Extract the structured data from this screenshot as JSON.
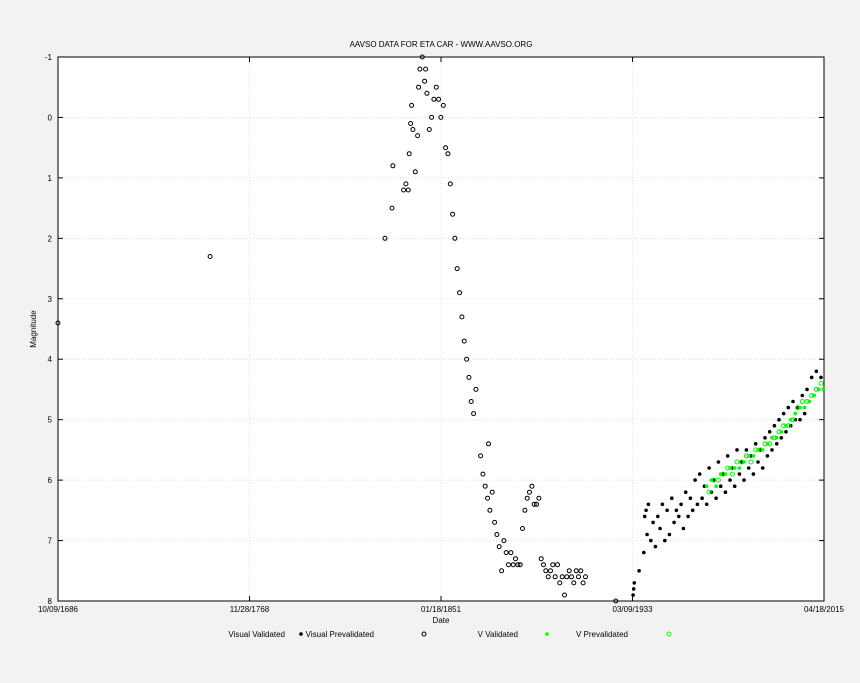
{
  "chart_data": {
    "type": "scatter",
    "title": "AAVSO DATA FOR ETA CAR - WWW.AAVSO.ORG",
    "xlabel": "Date",
    "ylabel": "Magnitude",
    "x_scale": "date",
    "xlim": [
      "1686-10-09",
      "2015-04-18"
    ],
    "ylim": [
      -1,
      8
    ],
    "y_inverted": true,
    "x_tick_labels": [
      "10/09/1686",
      "11/28/1768",
      "01/18/1851",
      "03/09/1933",
      "04/18/2015"
    ],
    "y_tick_labels": [
      "-1",
      "0",
      "1",
      "2",
      "3",
      "4",
      "5",
      "6",
      "7",
      "8"
    ],
    "grid": true,
    "legend_position": "bottom",
    "series": [
      {
        "name": "Visual Validated",
        "color": "#000000",
        "marker": "filled-dot",
        "points": [
          [
            "1933-06-01",
            7.9
          ],
          [
            "1933-09-01",
            7.8
          ],
          [
            "1933-12-01",
            7.7
          ],
          [
            "1936-01-01",
            7.5
          ],
          [
            "1938-01-01",
            7.2
          ],
          [
            "1938-06-01",
            6.6
          ],
          [
            "1939-01-01",
            6.5
          ],
          [
            "1939-06-01",
            6.9
          ],
          [
            "1940-01-01",
            6.4
          ],
          [
            "1941-01-01",
            7.0
          ],
          [
            "1942-01-01",
            6.7
          ],
          [
            "1943-01-01",
            7.1
          ],
          [
            "1944-01-01",
            6.6
          ],
          [
            "1945-01-01",
            6.8
          ],
          [
            "1946-01-01",
            6.4
          ],
          [
            "1947-01-01",
            7.0
          ],
          [
            "1948-01-01",
            6.5
          ],
          [
            "1949-01-01",
            6.9
          ],
          [
            "1950-01-01",
            6.3
          ],
          [
            "1951-01-01",
            6.7
          ],
          [
            "1952-01-01",
            6.5
          ],
          [
            "1953-01-01",
            6.6
          ],
          [
            "1954-01-01",
            6.4
          ],
          [
            "1955-01-01",
            6.8
          ],
          [
            "1956-01-01",
            6.2
          ],
          [
            "1957-01-01",
            6.6
          ],
          [
            "1958-01-01",
            6.3
          ],
          [
            "1959-01-01",
            6.5
          ],
          [
            "1960-01-01",
            6.0
          ],
          [
            "1961-01-01",
            6.4
          ],
          [
            "1962-01-01",
            5.9
          ],
          [
            "1963-01-01",
            6.3
          ],
          [
            "1964-01-01",
            6.1
          ],
          [
            "1965-01-01",
            6.4
          ],
          [
            "1966-01-01",
            5.8
          ],
          [
            "1967-01-01",
            6.2
          ],
          [
            "1968-01-01",
            6.0
          ],
          [
            "1969-01-01",
            6.3
          ],
          [
            "1970-01-01",
            5.7
          ],
          [
            "1971-01-01",
            6.1
          ],
          [
            "1972-01-01",
            5.9
          ],
          [
            "1973-01-01",
            6.2
          ],
          [
            "1974-01-01",
            5.6
          ],
          [
            "1975-01-01",
            6.0
          ],
          [
            "1976-01-01",
            5.8
          ],
          [
            "1977-01-01",
            6.1
          ],
          [
            "1978-01-01",
            5.5
          ],
          [
            "1979-01-01",
            5.9
          ],
          [
            "1980-01-01",
            5.7
          ],
          [
            "1981-01-01",
            6.0
          ],
          [
            "1982-01-01",
            5.5
          ],
          [
            "1983-01-01",
            5.8
          ],
          [
            "1984-01-01",
            5.6
          ],
          [
            "1985-01-01",
            5.9
          ],
          [
            "1986-01-01",
            5.4
          ],
          [
            "1987-01-01",
            5.7
          ],
          [
            "1988-01-01",
            5.5
          ],
          [
            "1989-01-01",
            5.8
          ],
          [
            "1990-01-01",
            5.3
          ],
          [
            "1991-01-01",
            5.6
          ],
          [
            "1992-01-01",
            5.2
          ],
          [
            "1993-01-01",
            5.5
          ],
          [
            "1994-01-01",
            5.1
          ],
          [
            "1995-01-01",
            5.4
          ],
          [
            "1996-01-01",
            5.0
          ],
          [
            "1997-01-01",
            5.3
          ],
          [
            "1998-01-01",
            4.9
          ],
          [
            "1999-01-01",
            5.2
          ],
          [
            "2000-01-01",
            4.8
          ],
          [
            "2001-01-01",
            5.1
          ],
          [
            "2002-01-01",
            4.7
          ],
          [
            "2003-01-01",
            5.0
          ],
          [
            "2004-01-01",
            4.8
          ],
          [
            "2005-01-01",
            5.0
          ],
          [
            "2006-01-01",
            4.6
          ],
          [
            "2007-01-01",
            4.9
          ],
          [
            "2008-01-01",
            4.5
          ],
          [
            "2009-01-01",
            4.7
          ],
          [
            "2010-01-01",
            4.3
          ],
          [
            "2011-01-01",
            4.6
          ],
          [
            "2012-01-01",
            4.2
          ],
          [
            "2013-01-01",
            4.5
          ],
          [
            "2014-01-01",
            4.3
          ],
          [
            "2015-01-01",
            4.5
          ]
        ]
      },
      {
        "name": "Visual Prevalidated",
        "color": "#000000",
        "marker": "open-dot",
        "points": [
          [
            "1686-10-09",
            3.4
          ],
          [
            "1752-01-01",
            2.3
          ],
          [
            "1827-01-01",
            2.0
          ],
          [
            "1830-01-01",
            1.5
          ],
          [
            "1830-06-01",
            0.8
          ],
          [
            "1835-01-01",
            1.2
          ],
          [
            "1836-01-01",
            1.1
          ],
          [
            "1837-01-01",
            1.2
          ],
          [
            "1837-06-01",
            0.6
          ],
          [
            "1838-01-01",
            0.1
          ],
          [
            "1838-06-01",
            -0.2
          ],
          [
            "1839-01-01",
            0.2
          ],
          [
            "1840-01-01",
            0.9
          ],
          [
            "1841-01-01",
            0.3
          ],
          [
            "1841-06-01",
            -0.5
          ],
          [
            "1842-01-01",
            -0.8
          ],
          [
            "1843-01-01",
            -1.0
          ],
          [
            "1844-01-01",
            -0.6
          ],
          [
            "1844-06-01",
            -0.8
          ],
          [
            "1845-01-01",
            -0.4
          ],
          [
            "1846-01-01",
            0.2
          ],
          [
            "1847-01-01",
            0.0
          ],
          [
            "1848-01-01",
            -0.3
          ],
          [
            "1849-01-01",
            -0.5
          ],
          [
            "1850-01-01",
            -0.3
          ],
          [
            "1851-01-01",
            0.0
          ],
          [
            "1852-01-01",
            -0.2
          ],
          [
            "1853-01-01",
            0.5
          ],
          [
            "1854-01-01",
            0.6
          ],
          [
            "1855-01-01",
            1.1
          ],
          [
            "1856-01-01",
            1.6
          ],
          [
            "1857-01-01",
            2.0
          ],
          [
            "1858-01-01",
            2.5
          ],
          [
            "1859-01-01",
            2.9
          ],
          [
            "1860-01-01",
            3.3
          ],
          [
            "1861-01-01",
            3.7
          ],
          [
            "1862-01-01",
            4.0
          ],
          [
            "1863-01-01",
            4.3
          ],
          [
            "1864-01-01",
            4.7
          ],
          [
            "1865-01-01",
            4.9
          ],
          [
            "1866-01-01",
            4.5
          ],
          [
            "1868-01-01",
            5.6
          ],
          [
            "1869-01-01",
            5.9
          ],
          [
            "1870-01-01",
            6.1
          ],
          [
            "1871-01-01",
            6.3
          ],
          [
            "1871-06-01",
            5.4
          ],
          [
            "1872-01-01",
            6.5
          ],
          [
            "1873-01-01",
            6.2
          ],
          [
            "1874-01-01",
            6.7
          ],
          [
            "1875-01-01",
            6.9
          ],
          [
            "1876-01-01",
            7.1
          ],
          [
            "1877-01-01",
            7.5
          ],
          [
            "1878-01-01",
            7.0
          ],
          [
            "1879-01-01",
            7.2
          ],
          [
            "1880-01-01",
            7.4
          ],
          [
            "1881-01-01",
            7.2
          ],
          [
            "1882-01-01",
            7.4
          ],
          [
            "1883-01-01",
            7.3
          ],
          [
            "1884-01-01",
            7.4
          ],
          [
            "1885-01-01",
            7.4
          ],
          [
            "1886-01-01",
            6.8
          ],
          [
            "1887-01-01",
            6.5
          ],
          [
            "1888-01-01",
            6.3
          ],
          [
            "1889-01-01",
            6.2
          ],
          [
            "1890-01-01",
            6.1
          ],
          [
            "1891-01-01",
            6.4
          ],
          [
            "1892-01-01",
            6.4
          ],
          [
            "1893-01-01",
            6.3
          ],
          [
            "1894-01-01",
            7.3
          ],
          [
            "1895-01-01",
            7.4
          ],
          [
            "1896-01-01",
            7.5
          ],
          [
            "1897-01-01",
            7.6
          ],
          [
            "1898-01-01",
            7.5
          ],
          [
            "1899-01-01",
            7.4
          ],
          [
            "1900-01-01",
            7.6
          ],
          [
            "1901-01-01",
            7.4
          ],
          [
            "1902-01-01",
            7.7
          ],
          [
            "1903-01-01",
            7.6
          ],
          [
            "1904-01-01",
            7.9
          ],
          [
            "1905-01-01",
            7.6
          ],
          [
            "1906-01-01",
            7.5
          ],
          [
            "1907-01-01",
            7.6
          ],
          [
            "1908-01-01",
            7.7
          ],
          [
            "1909-01-01",
            7.5
          ],
          [
            "1910-01-01",
            7.6
          ],
          [
            "1911-01-01",
            7.5
          ],
          [
            "1912-01-01",
            7.7
          ],
          [
            "1913-01-01",
            7.6
          ],
          [
            "1926-01-01",
            8.0
          ]
        ]
      },
      {
        "name": "V Validated",
        "color": "#00ff00",
        "marker": "filled-dot",
        "points": [
          [
            "1965-01-01",
            6.1
          ],
          [
            "1967-01-01",
            6.0
          ],
          [
            "1969-01-01",
            6.1
          ],
          [
            "1971-01-01",
            5.9
          ],
          [
            "1973-01-01",
            5.9
          ],
          [
            "1975-01-01",
            5.8
          ],
          [
            "1977-01-01",
            5.8
          ],
          [
            "1979-01-01",
            5.8
          ],
          [
            "1981-01-01",
            5.7
          ],
          [
            "1983-01-01",
            5.6
          ],
          [
            "1985-01-01",
            5.6
          ],
          [
            "1987-01-01",
            5.5
          ],
          [
            "1989-01-01",
            5.5
          ],
          [
            "1991-01-01",
            5.4
          ],
          [
            "1993-01-01",
            5.3
          ],
          [
            "1995-01-01",
            5.3
          ],
          [
            "1997-01-01",
            5.2
          ],
          [
            "1999-01-01",
            5.1
          ],
          [
            "2001-01-01",
            5.0
          ],
          [
            "2003-01-01",
            4.9
          ],
          [
            "2005-01-01",
            4.8
          ],
          [
            "2007-01-01",
            4.8
          ],
          [
            "2009-01-01",
            4.7
          ],
          [
            "2011-01-01",
            4.6
          ],
          [
            "2013-01-01",
            4.5
          ],
          [
            "2015-01-01",
            4.5
          ]
        ]
      },
      {
        "name": "V Prevalidated",
        "color": "#00ff00",
        "marker": "open-dot",
        "points": [
          [
            "1966-01-01",
            6.2
          ],
          [
            "1968-01-01",
            6.0
          ],
          [
            "1970-01-01",
            6.0
          ],
          [
            "1972-01-01",
            5.9
          ],
          [
            "1974-01-01",
            5.8
          ],
          [
            "1976-01-01",
            5.9
          ],
          [
            "1978-01-01",
            5.7
          ],
          [
            "1980-01-01",
            5.7
          ],
          [
            "1982-01-01",
            5.6
          ],
          [
            "1984-01-01",
            5.7
          ],
          [
            "1986-01-01",
            5.5
          ],
          [
            "1988-01-01",
            5.5
          ],
          [
            "1990-01-01",
            5.4
          ],
          [
            "1992-01-01",
            5.4
          ],
          [
            "1994-01-01",
            5.3
          ],
          [
            "1996-01-01",
            5.2
          ],
          [
            "1998-01-01",
            5.1
          ],
          [
            "2000-01-01",
            5.1
          ],
          [
            "2002-01-01",
            5.0
          ],
          [
            "2004-01-01",
            4.8
          ],
          [
            "2006-01-01",
            4.7
          ],
          [
            "2008-01-01",
            4.7
          ],
          [
            "2010-01-01",
            4.6
          ],
          [
            "2012-01-01",
            4.5
          ],
          [
            "2014-01-01",
            4.4
          ]
        ]
      }
    ]
  }
}
